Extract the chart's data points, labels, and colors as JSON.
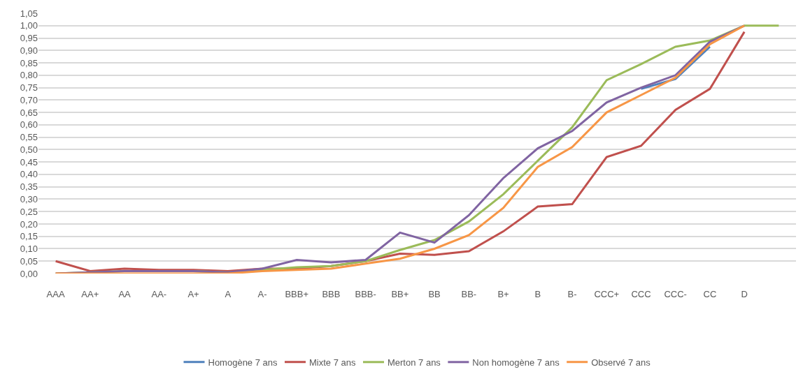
{
  "chart_data": {
    "type": "line",
    "categories": [
      "AAA",
      "AA+",
      "AA",
      "AA-",
      "A+",
      "A",
      "A-",
      "BBB+",
      "BBB",
      "BBB-",
      "BB+",
      "BB",
      "BB-",
      "B+",
      "B",
      "B-",
      "CCC+",
      "CCC",
      "CCC-",
      "CC",
      "D",
      null
    ],
    "series": [
      {
        "name": "Homogène 7 ans",
        "color": "#4f81bd",
        "values": [
          null,
          null,
          null,
          null,
          null,
          null,
          null,
          null,
          null,
          null,
          null,
          null,
          null,
          null,
          null,
          null,
          null,
          0.745,
          0.785,
          0.915,
          null,
          null
        ]
      },
      {
        "name": "Mixte 7 ans",
        "color": "#c0504d",
        "values": [
          0.05,
          0.01,
          0.02,
          0.015,
          0.015,
          0.01,
          0.02,
          0.02,
          0.03,
          0.05,
          0.08,
          0.075,
          0.09,
          0.17,
          0.27,
          0.28,
          0.47,
          0.515,
          0.66,
          0.745,
          0.975,
          null
        ]
      },
      {
        "name": "Merton 7 ans",
        "color": "#9bbb59",
        "values": [
          0,
          0.005,
          0.01,
          0.01,
          0.01,
          0.005,
          0.015,
          0.025,
          0.03,
          0.05,
          0.095,
          0.135,
          0.21,
          0.32,
          0.455,
          0.59,
          0.78,
          0.845,
          0.915,
          0.94,
          1.0,
          1.0
        ]
      },
      {
        "name": "Non homogène 7 ans",
        "color": "#8064a2",
        "values": [
          0,
          0.005,
          0.01,
          0.01,
          0.01,
          0.005,
          0.02,
          0.055,
          0.045,
          0.055,
          0.165,
          0.125,
          0.235,
          0.385,
          0.505,
          0.575,
          0.69,
          0.75,
          0.8,
          0.935,
          1.0,
          null
        ]
      },
      {
        "name": "Observé 7 ans",
        "color": "#f79646",
        "values": [
          0,
          0,
          0,
          0,
          0,
          0,
          0.01,
          0.015,
          0.02,
          0.04,
          0.06,
          0.1,
          0.155,
          0.265,
          0.43,
          0.51,
          0.65,
          0.72,
          0.79,
          0.925,
          1.0,
          null
        ]
      }
    ],
    "ylim": [
      0,
      1.05
    ],
    "yticks": [
      {
        "value": 0,
        "label": "0,00"
      },
      {
        "value": 0.05,
        "label": "0,05"
      },
      {
        "value": 0.1,
        "label": "0,10"
      },
      {
        "value": 0.15,
        "label": "0,15"
      },
      {
        "value": 0.2,
        "label": "0,20"
      },
      {
        "value": 0.25,
        "label": "0,25"
      },
      {
        "value": 0.3,
        "label": "0,30"
      },
      {
        "value": 0.35,
        "label": "0,35"
      },
      {
        "value": 0.4,
        "label": "0,40"
      },
      {
        "value": 0.45,
        "label": "0,45"
      },
      {
        "value": 0.5,
        "label": "0,50"
      },
      {
        "value": 0.55,
        "label": "0,55"
      },
      {
        "value": 0.6,
        "label": "0,60"
      },
      {
        "value": 0.65,
        "label": "0,65"
      },
      {
        "value": 0.7,
        "label": "0,70"
      },
      {
        "value": 0.75,
        "label": "0,75"
      },
      {
        "value": 0.8,
        "label": "0,80"
      },
      {
        "value": 0.85,
        "label": "0,85"
      },
      {
        "value": 0.9,
        "label": "0,90"
      },
      {
        "value": 0.95,
        "label": "0,95"
      },
      {
        "value": 1.0,
        "label": "1,00"
      },
      {
        "value": 1.05,
        "label": "1,05"
      }
    ],
    "grid": "y",
    "legend": "bottom",
    "marker": "none",
    "line_style": "solid"
  }
}
